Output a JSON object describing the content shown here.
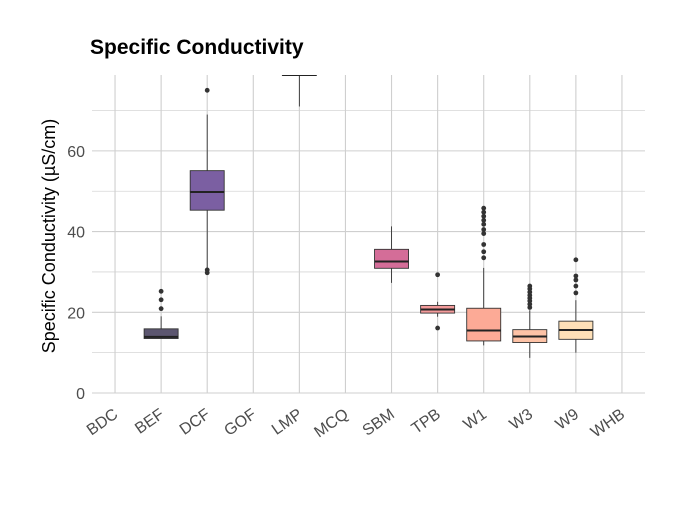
{
  "chart_data": {
    "type": "box",
    "title": "Specific Conductivity",
    "xlabel": "",
    "ylabel": "Specific Conductivity (µS/cm)",
    "categories": [
      "BDC",
      "BEF",
      "DCF",
      "GOF",
      "LMP",
      "MCQ",
      "SBM",
      "TPB",
      "W1",
      "W3",
      "W9",
      "WHB"
    ],
    "y_ticks": [
      0,
      20,
      40,
      60
    ],
    "ylim": [
      0,
      78.8
    ],
    "grid": true,
    "legend": "none",
    "boxes": [
      {
        "category": "BEF",
        "min": 13.5,
        "q1": 13.5,
        "median": 13.9,
        "q3": 15.9,
        "max": 19.0,
        "outliers": [
          20.9,
          23.1,
          25.2
        ],
        "color": "#5c5670"
      },
      {
        "category": "DCF",
        "min": 31.0,
        "q1": 45.3,
        "median": 49.8,
        "q3": 55.1,
        "max": 69.0,
        "outliers": [
          29.8,
          30.5,
          75.0
        ],
        "color": "#7b5fa2"
      },
      {
        "category": "LMP",
        "min": 71.0,
        "q1": 78.8,
        "median": 78.8,
        "q3": 78.8,
        "max": 78.8,
        "outliers": [],
        "color": "#8e6aa5"
      },
      {
        "category": "SBM",
        "min": 27.3,
        "q1": 30.9,
        "median": 32.6,
        "q3": 35.6,
        "max": 41.3,
        "outliers": [],
        "color": "#d46d98"
      },
      {
        "category": "TPB",
        "min": 18.9,
        "q1": 19.8,
        "median": 20.7,
        "q3": 21.7,
        "max": 22.6,
        "outliers": [
          16.1,
          29.3
        ],
        "color": "#f39a9a"
      },
      {
        "category": "W1",
        "min": 11.8,
        "q1": 12.9,
        "median": 15.5,
        "q3": 21.0,
        "max": 31.0,
        "outliers": [
          33.5,
          35.0,
          36.8,
          39.5,
          40.5,
          41.8,
          42.8,
          43.8,
          44.8,
          45.8
        ],
        "color": "#fcaa96"
      },
      {
        "category": "W3",
        "min": 8.7,
        "q1": 12.5,
        "median": 14.0,
        "q3": 15.7,
        "max": 20.5,
        "outliers": [
          21.2,
          22.0,
          22.8,
          23.5,
          24.2,
          25.0,
          25.8,
          26.5
        ],
        "color": "#fdc2a6"
      },
      {
        "category": "W9",
        "min": 10.0,
        "q1": 13.3,
        "median": 15.6,
        "q3": 17.8,
        "max": 23.0,
        "outliers": [
          24.8,
          26.5,
          28.0,
          29.0,
          33.0
        ],
        "color": "#fee0b8"
      }
    ]
  }
}
